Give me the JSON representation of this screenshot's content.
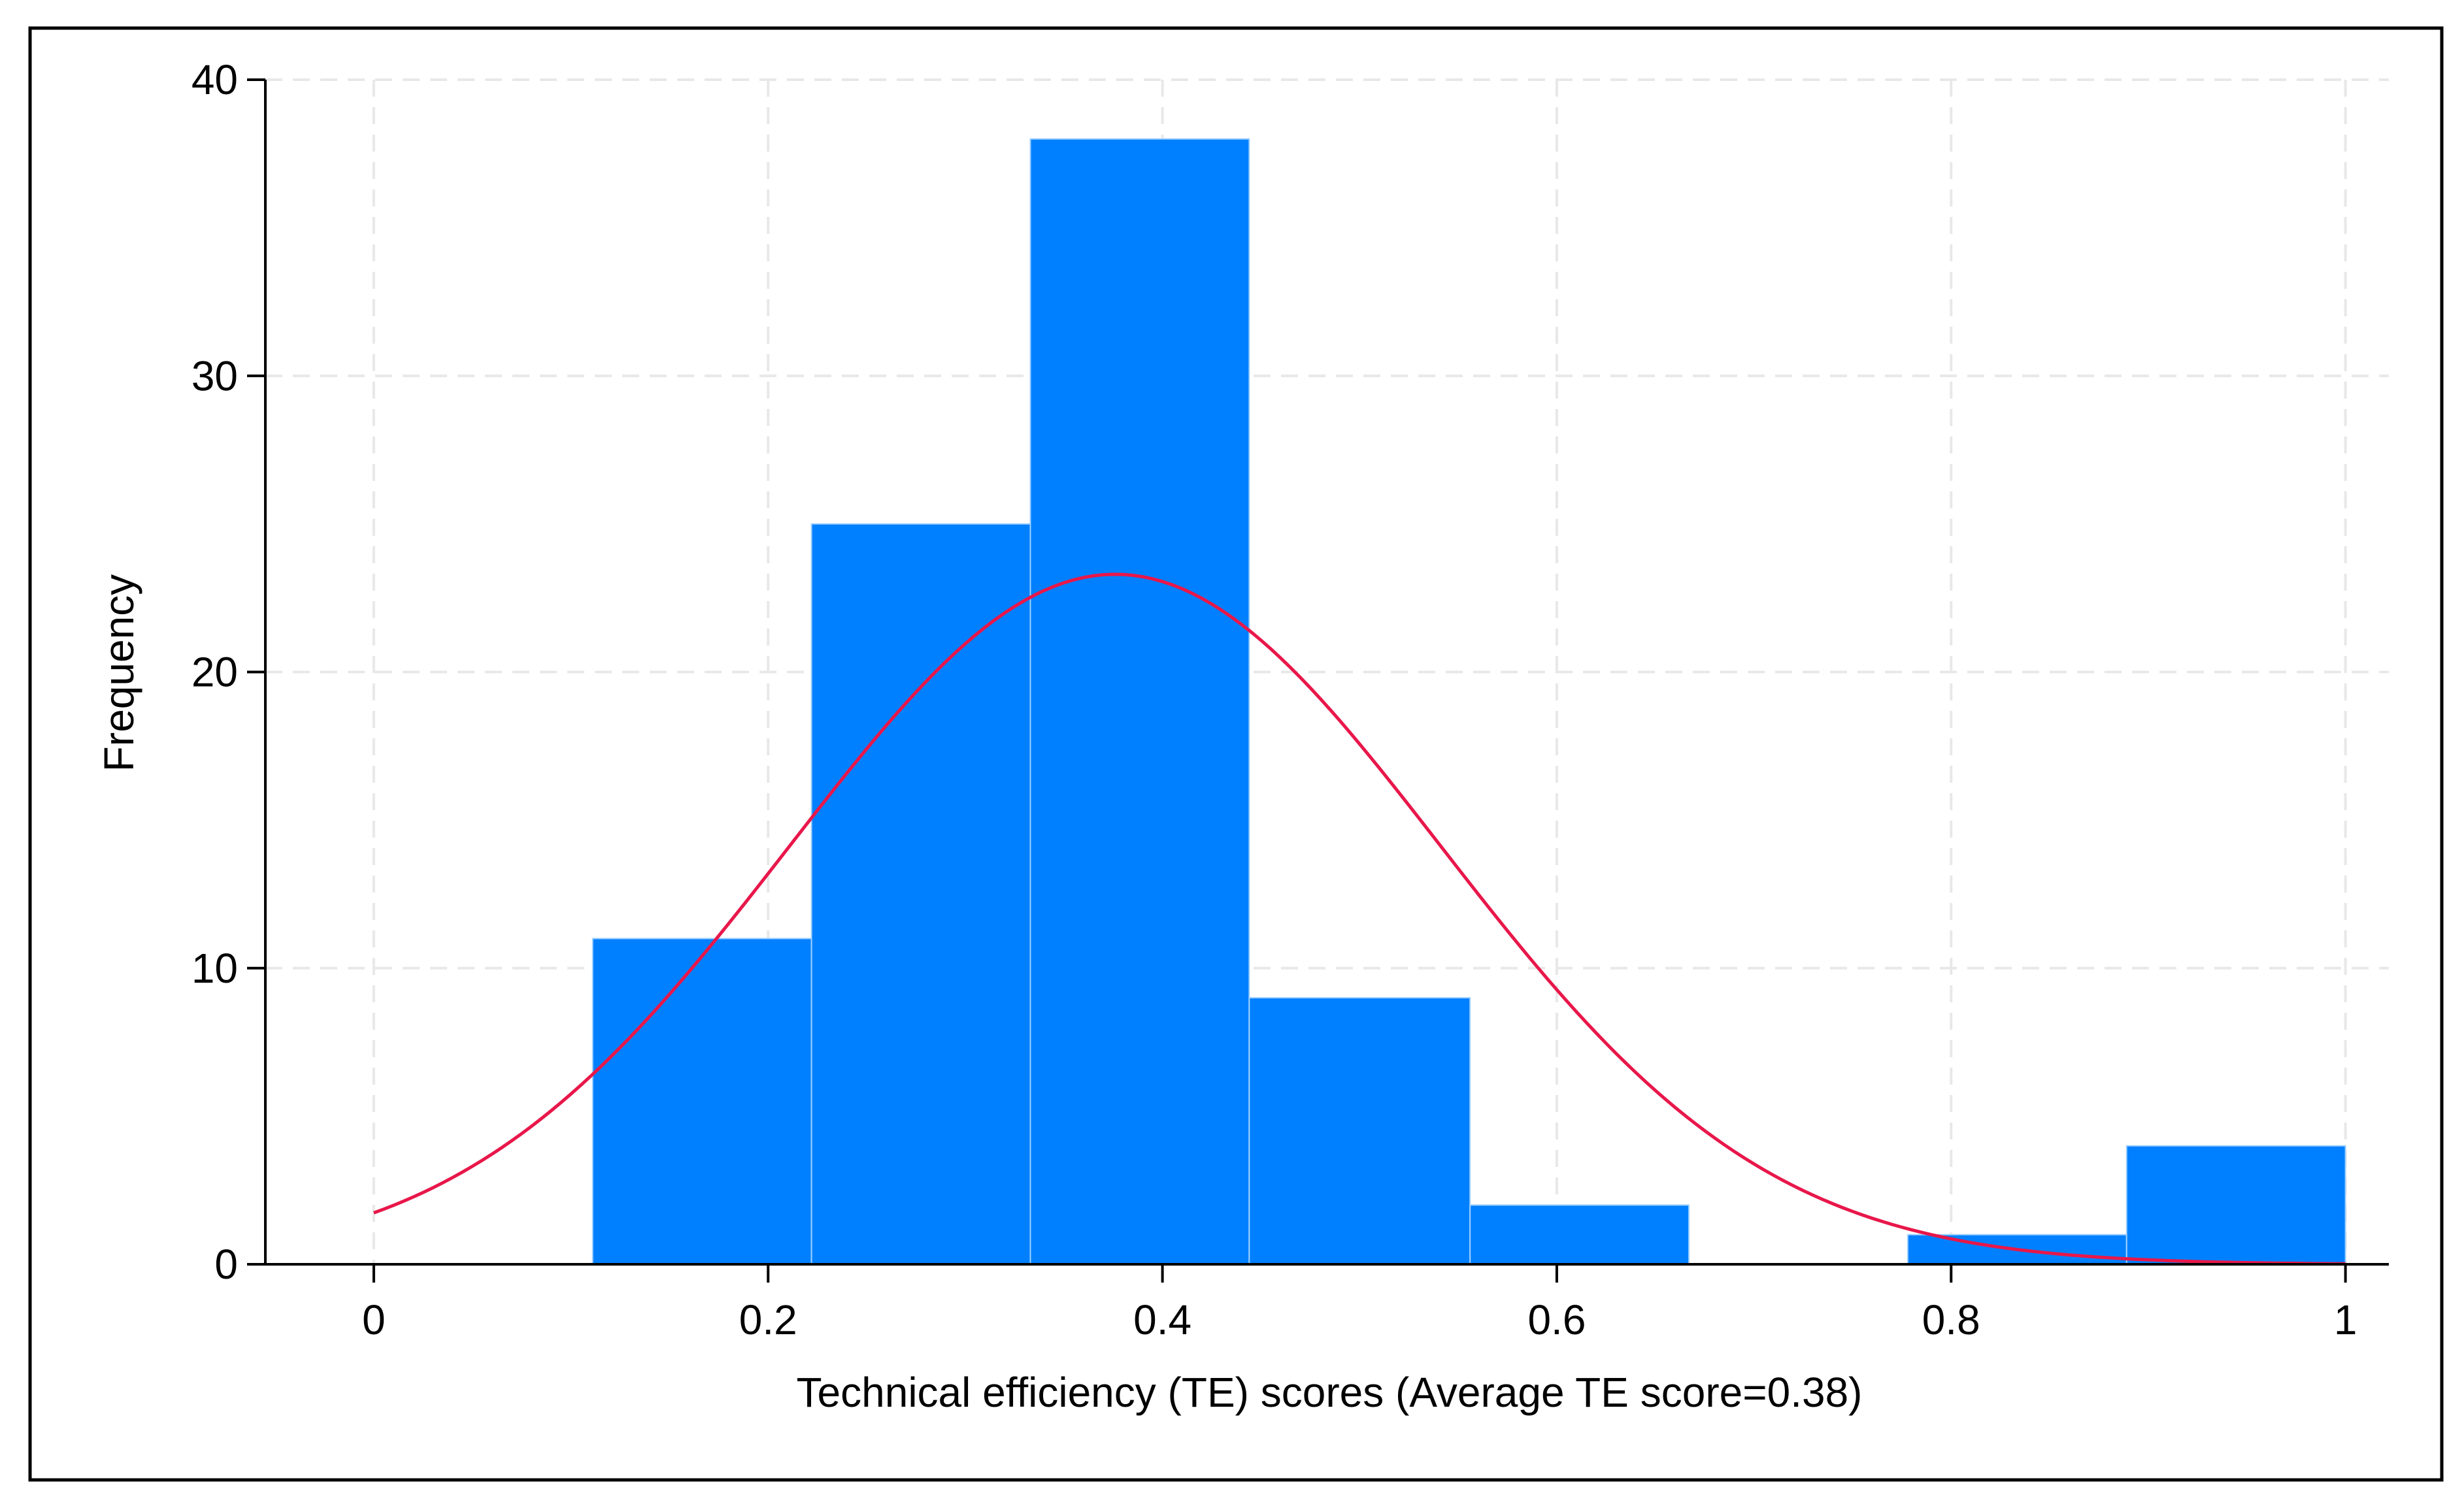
{
  "chart_data": {
    "type": "bar",
    "subtype": "histogram",
    "title": "",
    "xlabel": "Technical efficiency (TE) scores (Average TE score=0.38)",
    "ylabel": "Frequency",
    "xlim": [
      -0.055,
      1.022
    ],
    "ylim": [
      0,
      40
    ],
    "xticks": [
      0,
      0.2,
      0.4,
      0.6,
      0.8,
      1
    ],
    "xtick_labels": [
      "0",
      "0.2",
      "0.4",
      "0.6",
      "0.8",
      "1"
    ],
    "yticks": [
      0,
      10,
      20,
      30,
      40
    ],
    "ytick_labels": [
      "0",
      "10",
      "20",
      "30",
      "40"
    ],
    "grid": true,
    "bins": [
      {
        "start": 0.111,
        "end": 0.222,
        "value": 11
      },
      {
        "start": 0.222,
        "end": 0.333,
        "value": 25
      },
      {
        "start": 0.333,
        "end": 0.444,
        "value": 38
      },
      {
        "start": 0.444,
        "end": 0.556,
        "value": 9
      },
      {
        "start": 0.556,
        "end": 0.667,
        "value": 2
      },
      {
        "start": 0.667,
        "end": 0.778,
        "value": 0
      },
      {
        "start": 0.778,
        "end": 0.889,
        "value": 1
      },
      {
        "start": 0.889,
        "end": 1.0,
        "value": 4
      }
    ],
    "normal_curve": {
      "mean": 0.376,
      "sd": 0.165,
      "peak": 23.3,
      "x_range": [
        0,
        1
      ]
    },
    "colors": {
      "bars": "#0080ff",
      "bar_edge": "#9fd0ff",
      "curve": "#e8174a",
      "grid": "#e8e8e8",
      "axis": "#000000",
      "frame": "#000000"
    }
  }
}
